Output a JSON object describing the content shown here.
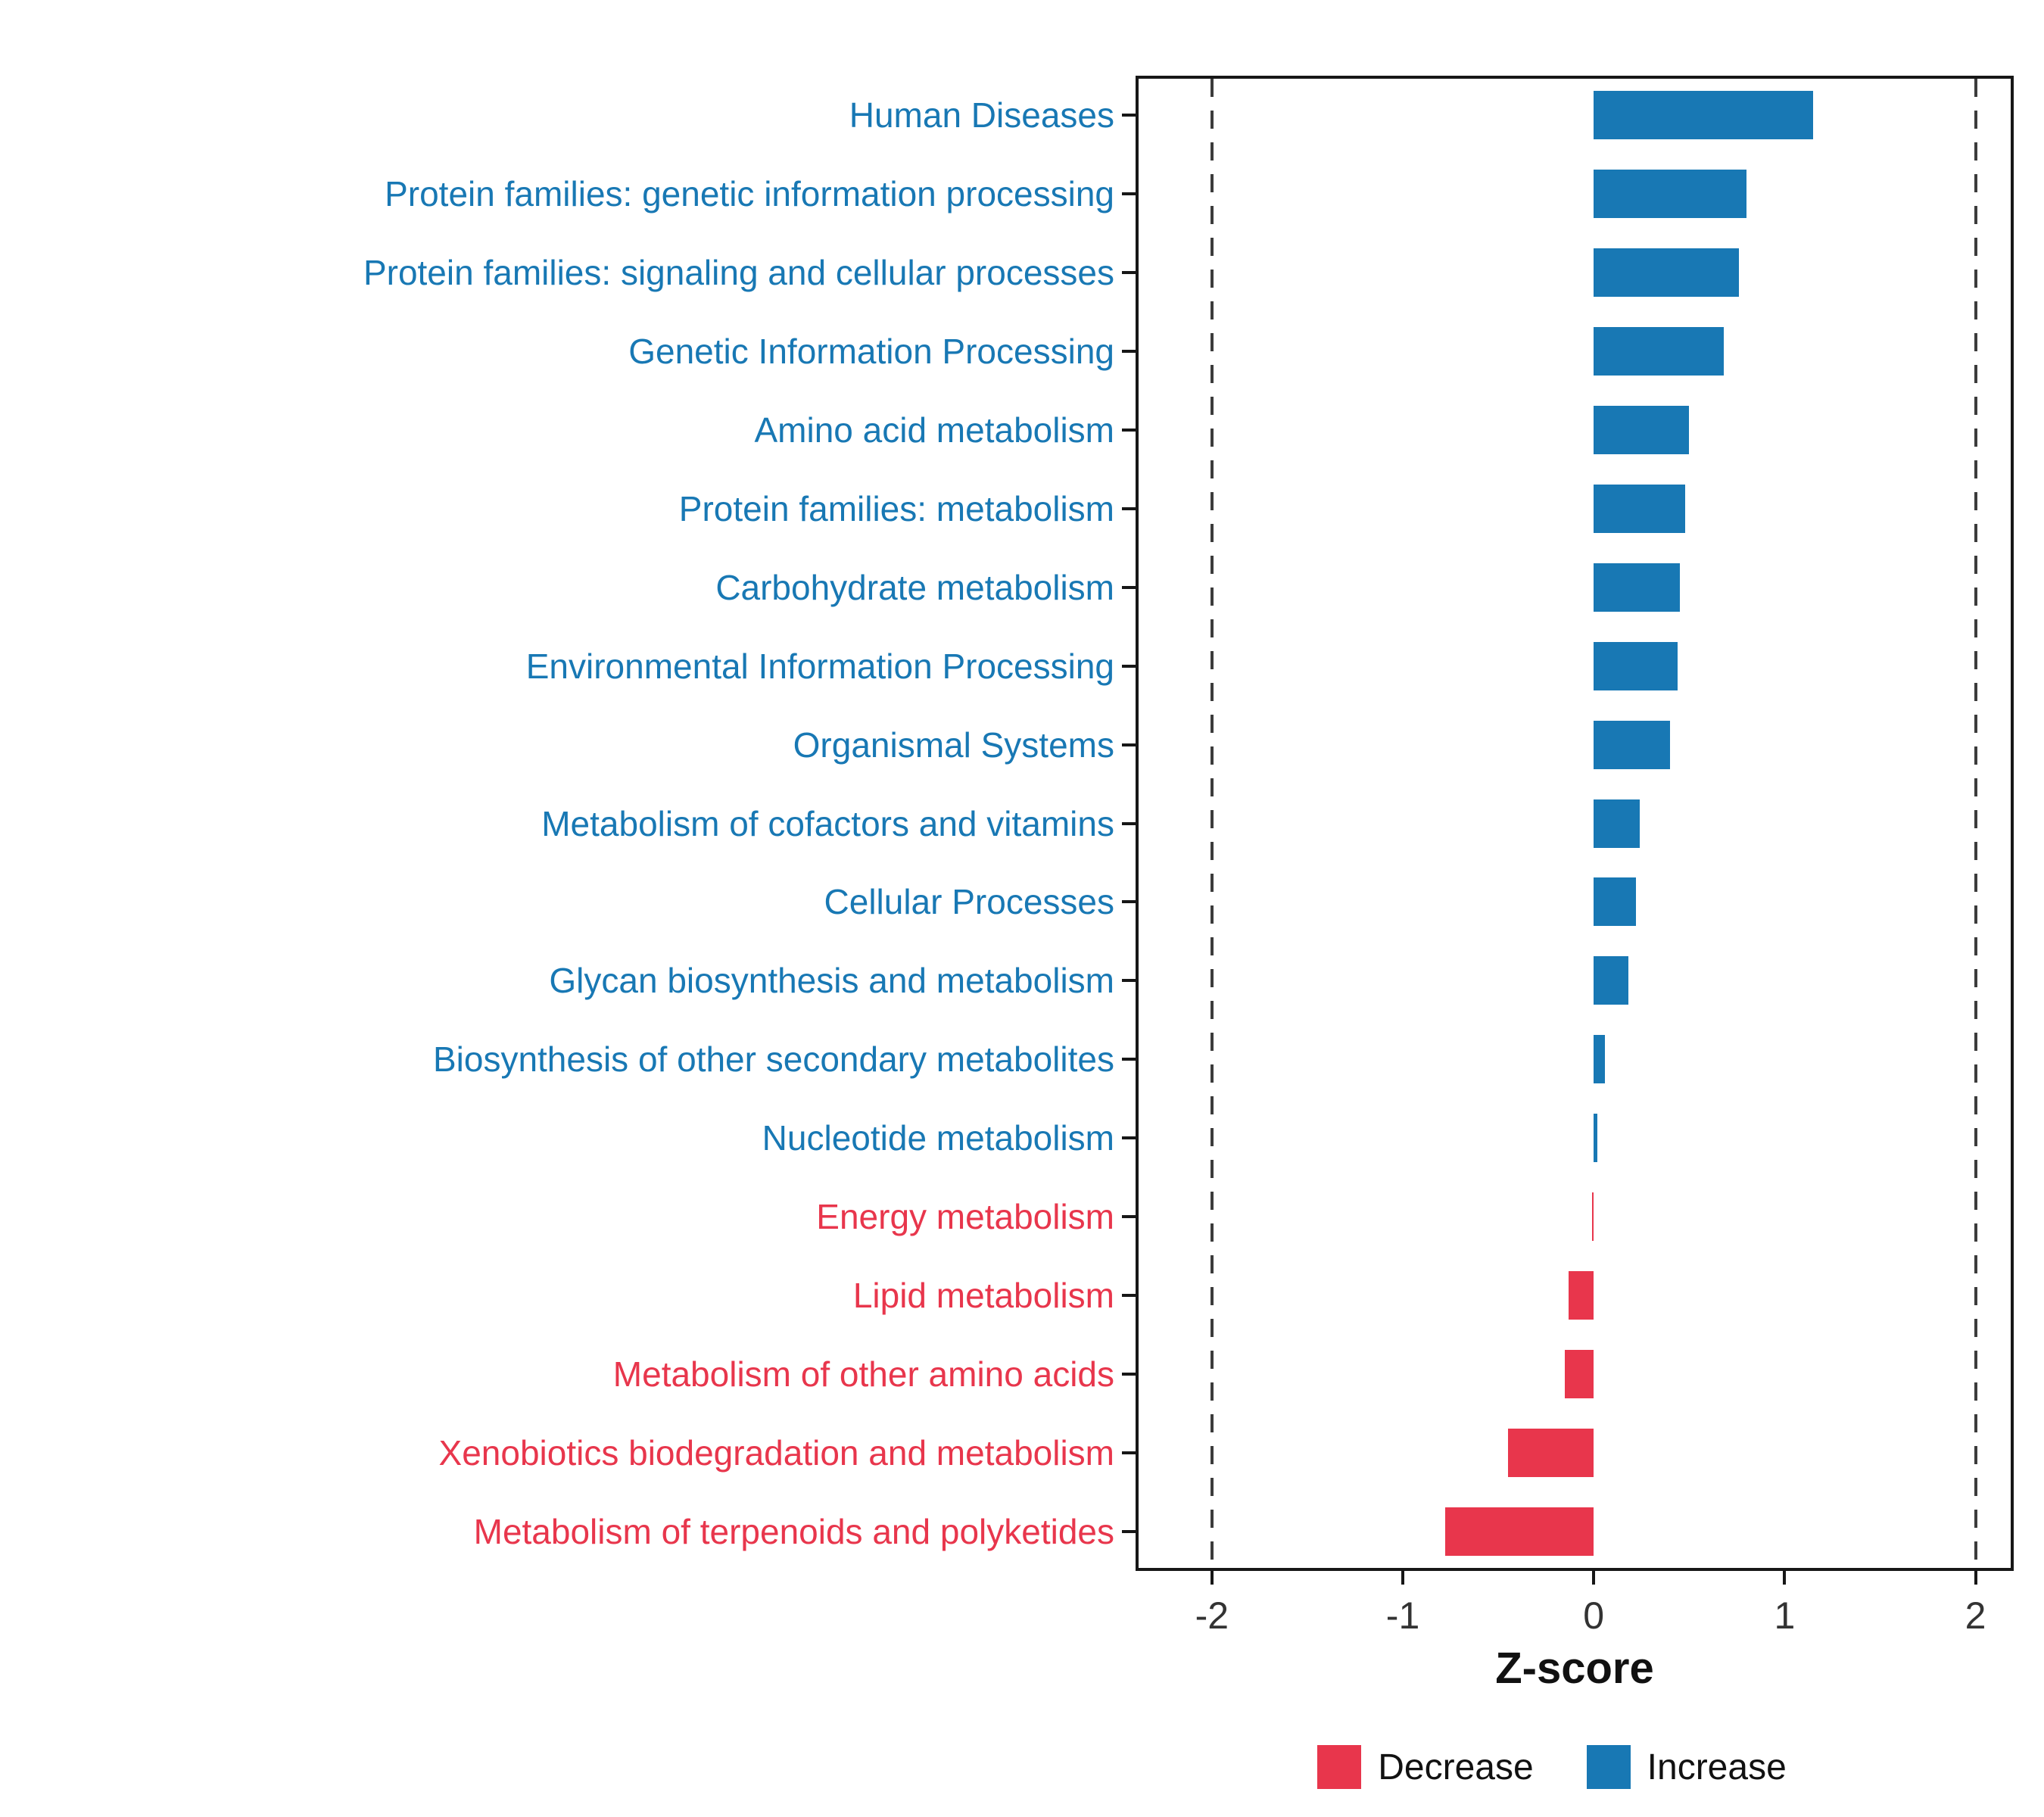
{
  "chart_data": {
    "type": "bar",
    "orientation": "horizontal",
    "title": "",
    "xlabel": "Z-score",
    "ylabel": "",
    "xlim": [
      -2.4,
      2.2
    ],
    "x_ticks": [
      -2,
      -1,
      0,
      1,
      2
    ],
    "ref_lines": [
      -2,
      2
    ],
    "grid": false,
    "legend_position": "bottom",
    "categories": [
      "Human Diseases",
      "Protein families: genetic information processing",
      "Protein families: signaling and cellular processes",
      "Genetic Information Processing",
      "Amino acid metabolism",
      "Protein families: metabolism",
      "Carbohydrate metabolism",
      "Environmental Information Processing",
      "Organismal Systems",
      "Metabolism of cofactors and vitamins",
      "Cellular Processes",
      "Glycan biosynthesis and metabolism",
      "Biosynthesis of other secondary metabolites",
      "Nucleotide metabolism",
      "Energy metabolism",
      "Lipid metabolism",
      "Metabolism of other amino acids",
      "Xenobiotics biodegradation and metabolism",
      "Metabolism of terpenoids and polyketides"
    ],
    "values": [
      1.15,
      0.8,
      0.76,
      0.68,
      0.5,
      0.48,
      0.45,
      0.44,
      0.4,
      0.24,
      0.22,
      0.18,
      0.06,
      0.02,
      -0.01,
      -0.13,
      -0.15,
      -0.45,
      -0.78
    ],
    "colors": {
      "increase": "#1878B4",
      "decrease": "#E8364C"
    },
    "legend": [
      {
        "label": "Decrease",
        "color_key": "decrease"
      },
      {
        "label": "Increase",
        "color_key": "increase"
      }
    ]
  }
}
